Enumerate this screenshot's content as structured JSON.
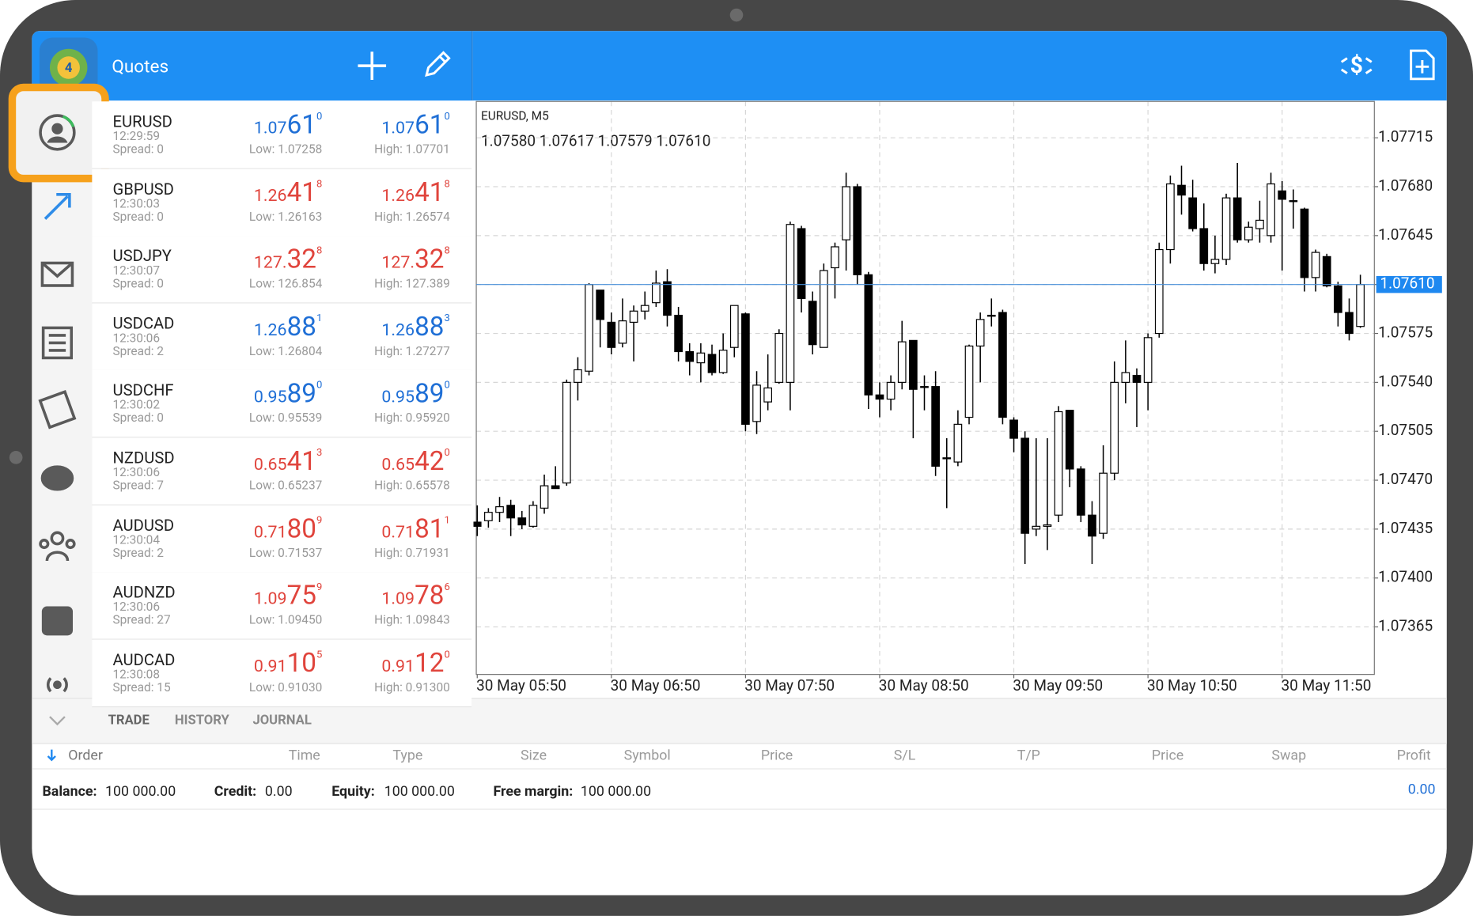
{
  "header": {
    "title": "Quotes"
  },
  "quotes": {
    "rows": [
      {
        "symbol": "EURUSD",
        "time": "12:29:59",
        "spread": "Spread: 0",
        "color": "#1f6fd6",
        "bid": [
          "1.07",
          "61",
          "0"
        ],
        "low": "Low: 1.07258",
        "ask": [
          "1.07",
          "61",
          "0"
        ],
        "high": "High: 1.07701"
      },
      {
        "symbol": "GBPUSD",
        "time": "12:30:03",
        "spread": "Spread: 0",
        "color": "#e0443c",
        "bid": [
          "1.26",
          "41",
          "8"
        ],
        "low": "Low: 1.26163",
        "ask": [
          "1.26",
          "41",
          "8"
        ],
        "high": "High: 1.26574"
      },
      {
        "symbol": "USDJPY",
        "time": "12:30:07",
        "spread": "Spread: 0",
        "color": "#e0443c",
        "bid": [
          "127.",
          "32",
          "8"
        ],
        "low": "Low: 126.854",
        "ask": [
          "127.",
          "32",
          "8"
        ],
        "high": "High: 127.389"
      },
      {
        "symbol": "USDCAD",
        "time": "12:30:06",
        "spread": "Spread: 2",
        "color": "#1f6fd6",
        "bid": [
          "1.26",
          "88",
          "1"
        ],
        "low": "Low: 1.26804",
        "ask": [
          "1.26",
          "88",
          "3"
        ],
        "high": "High: 1.27277"
      },
      {
        "symbol": "USDCHF",
        "time": "12:30:02",
        "spread": "Spread: 0",
        "color": "#1f6fd6",
        "bid": [
          "0.95",
          "89",
          "0"
        ],
        "low": "Low: 0.95539",
        "ask": [
          "0.95",
          "89",
          "0"
        ],
        "high": "High: 0.95920"
      },
      {
        "symbol": "NZDUSD",
        "time": "12:30:06",
        "spread": "Spread: 7",
        "color": "#e0443c",
        "bid": [
          "0.65",
          "41",
          "3"
        ],
        "low": "Low: 0.65237",
        "ask": [
          "0.65",
          "42",
          "0"
        ],
        "high": "High: 0.65578"
      },
      {
        "symbol": "AUDUSD",
        "time": "12:30:04",
        "spread": "Spread: 2",
        "color": "#e0443c",
        "bid": [
          "0.71",
          "80",
          "9"
        ],
        "low": "Low: 0.71537",
        "ask": [
          "0.71",
          "81",
          "1"
        ],
        "high": "High: 0.71931"
      },
      {
        "symbol": "AUDNZD",
        "time": "12:30:06",
        "spread": "Spread: 27",
        "color": "#e0443c",
        "bid": [
          "1.09",
          "75",
          "9"
        ],
        "low": "Low: 1.09450",
        "ask": [
          "1.09",
          "78",
          "6"
        ],
        "high": "High: 1.09843"
      },
      {
        "symbol": "AUDCAD",
        "time": "12:30:08",
        "spread": "Spread: 15",
        "color": "#e0443c",
        "bid": [
          "0.91",
          "10",
          "5"
        ],
        "low": "Low: 0.91030",
        "ask": [
          "0.91",
          "12",
          "0"
        ],
        "high": "High: 0.91300"
      }
    ]
  },
  "chart_data": {
    "type": "candlestick",
    "title": "EURUSD, M5",
    "subtitle": "1.07580 1.07617 1.07579 1.07610",
    "categories": [
      "30 May 05:50",
      null,
      null,
      null,
      null,
      null,
      null,
      null,
      null,
      null,
      null,
      null,
      "30 May 06:50",
      null,
      null,
      null,
      null,
      null,
      null,
      null,
      null,
      null,
      null,
      null,
      "30 May 07:50",
      null,
      null,
      null,
      null,
      null,
      null,
      null,
      null,
      null,
      null,
      null,
      "30 May 08:50",
      null,
      null,
      null,
      null,
      null,
      null,
      null,
      null,
      null,
      null,
      null,
      "30 May 09:50",
      null,
      null,
      null,
      null,
      null,
      null,
      null,
      null,
      null,
      null,
      null,
      "30 May 10:50",
      null,
      null,
      null,
      null,
      null,
      null,
      null,
      null,
      null,
      null,
      null,
      "30 May 11:50",
      null,
      null,
      null,
      null,
      null,
      null,
      null
    ],
    "open": [
      1.0744,
      1.07441,
      1.07447,
      1.07452,
      1.07443,
      1.07437,
      1.0745,
      1.07466,
      1.07468,
      1.0754,
      1.07548,
      1.07606,
      1.07583,
      1.07568,
      1.07583,
      1.07591,
      1.07597,
      1.07612,
      1.07588,
      1.07562,
      1.07554,
      1.0756,
      1.07547,
      1.07565,
      1.07589,
      1.07512,
      1.07526,
      1.0754,
      1.0754,
      1.0765,
      1.07598,
      1.07565,
      1.07622,
      1.07642,
      1.0768,
      1.07617,
      1.07531,
      1.07528,
      1.0754,
      1.0757,
      1.07537,
      1.07537,
      1.07486,
      1.07483,
      1.07515,
      1.07566,
      1.07588,
      1.0759,
      1.07513,
      1.075,
      1.07435,
      1.07437,
      1.07445,
      1.0752,
      1.07478,
      1.07445,
      1.07432,
      1.07475,
      1.0754,
      1.07545,
      1.0754,
      1.07575,
      1.07635,
      1.07681,
      1.07672,
      1.0765,
      1.07625,
      1.07628,
      1.07672,
      1.07642,
      1.0765,
      1.07645,
      1.07677,
      1.0767,
      1.07664,
      1.07615,
      1.0763,
      1.07609,
      1.0759,
      1.0758
    ],
    "high": [
      1.07452,
      1.0745,
      1.07458,
      1.07456,
      1.07448,
      1.07455,
      1.07474,
      1.0748,
      1.07542,
      1.07558,
      1.07611,
      1.07606,
      1.0759,
      1.076,
      1.07595,
      1.07605,
      1.0762,
      1.07621,
      1.07594,
      1.07568,
      1.07568,
      1.07567,
      1.07575,
      1.07595,
      1.0759,
      1.07548,
      1.0756,
      1.07578,
      1.07655,
      1.07652,
      1.07605,
      1.07625,
      1.0764,
      1.0769,
      1.07682,
      1.07619,
      1.0754,
      1.07545,
      1.07584,
      1.0757,
      1.07545,
      1.07548,
      1.075,
      1.0752,
      1.07567,
      1.0759,
      1.076,
      1.07592,
      1.07515,
      1.07505,
      1.075,
      1.075,
      1.07523,
      1.0752,
      1.0748,
      1.07455,
      1.07495,
      1.07555,
      1.0757,
      1.0755,
      1.07575,
      1.0764,
      1.07688,
      1.07695,
      1.07685,
      1.07668,
      1.07645,
      1.07675,
      1.07697,
      1.07655,
      1.0767,
      1.0769,
      1.07684,
      1.07678,
      1.07665,
      1.07635,
      1.07632,
      1.07612,
      1.076,
      1.07617
    ],
    "low": [
      1.0743,
      1.07436,
      1.0744,
      1.0743,
      1.07435,
      1.07436,
      1.07446,
      1.07464,
      1.07466,
      1.07527,
      1.07545,
      1.07565,
      1.0756,
      1.07565,
      1.07555,
      1.07585,
      1.07594,
      1.0758,
      1.07555,
      1.07545,
      1.0754,
      1.07545,
      1.07546,
      1.07558,
      1.07505,
      1.07503,
      1.0752,
      1.07539,
      1.0752,
      1.0759,
      1.0756,
      1.07565,
      1.076,
      1.0762,
      1.0761,
      1.07521,
      1.07515,
      1.0752,
      1.07535,
      1.075,
      1.0752,
      1.07473,
      1.0745,
      1.0748,
      1.0751,
      1.0754,
      1.0758,
      1.0751,
      1.0749,
      1.0741,
      1.0743,
      1.0742,
      1.0744,
      1.07465,
      1.0744,
      1.0741,
      1.07428,
      1.0747,
      1.07525,
      1.07508,
      1.0752,
      1.07572,
      1.07625,
      1.0766,
      1.07648,
      1.0762,
      1.07618,
      1.07624,
      1.0764,
      1.0764,
      1.0764,
      1.0764,
      1.0762,
      1.0765,
      1.07605,
      1.07605,
      1.07608,
      1.0758,
      1.0757,
      1.07579
    ],
    "close": [
      1.07437,
      1.07447,
      1.07451,
      1.07443,
      1.07438,
      1.07452,
      1.07466,
      1.07464,
      1.0754,
      1.07549,
      1.0761,
      1.07585,
      1.07565,
      1.07584,
      1.07591,
      1.07595,
      1.07611,
      1.07588,
      1.07562,
      1.07555,
      1.07561,
      1.07547,
      1.07563,
      1.07595,
      1.0751,
      1.07538,
      1.07536,
      1.07575,
      1.07653,
      1.076,
      1.07567,
      1.0762,
      1.07637,
      1.0768,
      1.07617,
      1.07531,
      1.07528,
      1.0754,
      1.07569,
      1.07535,
      1.07537,
      1.0748,
      1.07486,
      1.0751,
      1.07566,
      1.07585,
      1.07588,
      1.07515,
      1.075,
      1.07432,
      1.07437,
      1.07438,
      1.07519,
      1.07478,
      1.07445,
      1.0743,
      1.07475,
      1.0754,
      1.07547,
      1.0754,
      1.07572,
      1.07635,
      1.07682,
      1.07674,
      1.0765,
      1.07625,
      1.07628,
      1.07672,
      1.07642,
      1.07651,
      1.07656,
      1.07682,
      1.07671,
      1.0767,
      1.07615,
      1.07633,
      1.07609,
      1.0759,
      1.07575,
      1.0761
    ],
    "ylim": [
      1.07331,
      1.07741
    ],
    "yticks": [
      1.07715,
      {
        "value": 1.0768,
        "label": "1.07680"
      },
      1.07645,
      {
        "value": 1.0761,
        "label": "1.07610"
      },
      1.07575,
      {
        "value": 1.0754,
        "label": "1.07540"
      },
      1.07505,
      {
        "value": 1.0747,
        "label": "1.07470"
      },
      1.07435,
      {
        "value": 1.074,
        "label": "1.07400"
      },
      1.07365
    ],
    "current": {
      "value": 1.0761,
      "label": "1.07610"
    },
    "grid": true,
    "up_color": "#ffffff",
    "down_color": "#000000"
  },
  "terminal": {
    "tabs": [
      "TRADE",
      "HISTORY",
      "JOURNAL"
    ],
    "columns": [
      "Order",
      "Time",
      "Type",
      "Size",
      "Symbol",
      "Price",
      "S/L",
      "T/P",
      "Price",
      "Swap",
      "Profit"
    ],
    "summary": [
      {
        "label": "Balance:",
        "value": "100 000.00"
      },
      {
        "label": "Credit:",
        "value": "0.00"
      },
      {
        "label": "Equity:",
        "value": "100 000.00"
      },
      {
        "label": "Free margin:",
        "value": "100 000.00"
      }
    ],
    "profit": "0.00"
  }
}
